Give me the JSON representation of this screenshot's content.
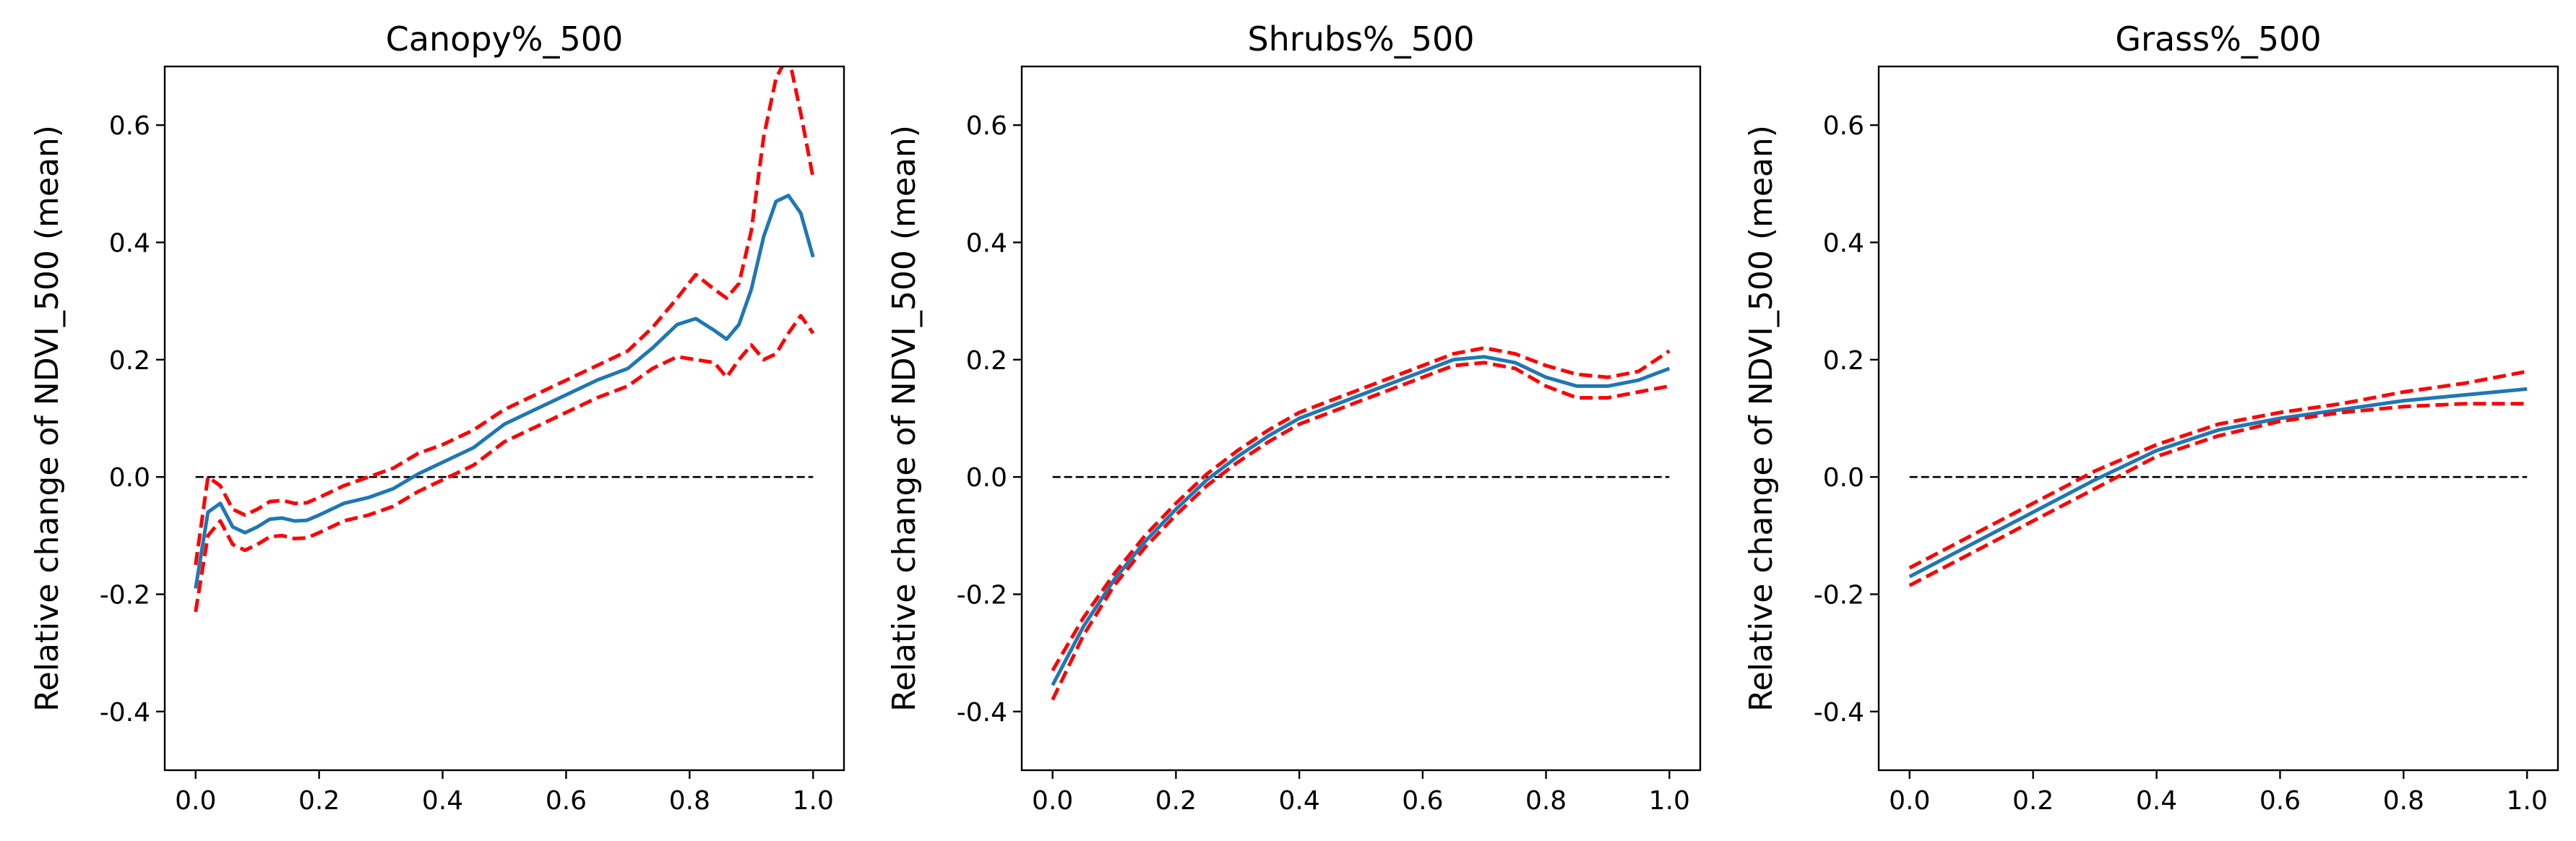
{
  "chart_data": [
    {
      "type": "line",
      "title": "Canopy%_500",
      "xlabel": "",
      "ylabel": "Relative change of NDVI_500 (mean)",
      "xlim": [
        -0.05,
        1.05
      ],
      "ylim": [
        -0.5,
        0.7
      ],
      "xticks": [
        "0.0",
        "0.2",
        "0.4",
        "0.6",
        "0.8",
        "1.0"
      ],
      "yticks": [
        "-0.4",
        "-0.2",
        "0.0",
        "0.2",
        "0.4",
        "0.6"
      ],
      "grid": false,
      "colors": {
        "mean": "#1f77b4",
        "ci": "#ff0000",
        "ref": "#000000"
      },
      "series": [
        {
          "role": "mean",
          "style": "solid",
          "x": [
            0.0,
            0.02,
            0.04,
            0.06,
            0.08,
            0.1,
            0.12,
            0.14,
            0.16,
            0.18,
            0.2,
            0.24,
            0.28,
            0.32,
            0.36,
            0.4,
            0.45,
            0.5,
            0.55,
            0.6,
            0.65,
            0.7,
            0.74,
            0.78,
            0.81,
            0.84,
            0.86,
            0.88,
            0.9,
            0.92,
            0.94,
            0.96,
            0.98,
            1.0
          ],
          "y": [
            -0.19,
            -0.06,
            -0.045,
            -0.085,
            -0.095,
            -0.085,
            -0.072,
            -0.07,
            -0.075,
            -0.074,
            -0.065,
            -0.045,
            -0.035,
            -0.02,
            0.005,
            0.025,
            0.05,
            0.09,
            0.115,
            0.14,
            0.165,
            0.185,
            0.22,
            0.26,
            0.27,
            0.25,
            0.235,
            0.26,
            0.32,
            0.41,
            0.47,
            0.48,
            0.45,
            0.375
          ]
        },
        {
          "role": "ci-upper",
          "style": "dashed",
          "x": [
            0.0,
            0.02,
            0.04,
            0.06,
            0.08,
            0.1,
            0.12,
            0.14,
            0.16,
            0.18,
            0.2,
            0.24,
            0.28,
            0.32,
            0.36,
            0.4,
            0.45,
            0.5,
            0.55,
            0.6,
            0.65,
            0.7,
            0.74,
            0.78,
            0.81,
            0.84,
            0.86,
            0.88,
            0.9,
            0.92,
            0.94,
            0.96,
            0.98,
            1.0
          ],
          "y": [
            -0.15,
            0.0,
            -0.015,
            -0.055,
            -0.065,
            -0.055,
            -0.042,
            -0.04,
            -0.045,
            -0.044,
            -0.035,
            -0.015,
            0.0,
            0.015,
            0.04,
            0.055,
            0.08,
            0.115,
            0.14,
            0.165,
            0.19,
            0.215,
            0.255,
            0.305,
            0.345,
            0.32,
            0.305,
            0.33,
            0.42,
            0.58,
            0.68,
            0.72,
            0.62,
            0.51
          ]
        },
        {
          "role": "ci-lower",
          "style": "dashed",
          "x": [
            0.0,
            0.02,
            0.04,
            0.06,
            0.08,
            0.1,
            0.12,
            0.14,
            0.16,
            0.18,
            0.2,
            0.24,
            0.28,
            0.32,
            0.36,
            0.4,
            0.45,
            0.5,
            0.55,
            0.6,
            0.65,
            0.7,
            0.74,
            0.78,
            0.81,
            0.84,
            0.86,
            0.88,
            0.9,
            0.92,
            0.94,
            0.96,
            0.98,
            1.0
          ],
          "y": [
            -0.23,
            -0.1,
            -0.075,
            -0.115,
            -0.125,
            -0.115,
            -0.102,
            -0.1,
            -0.105,
            -0.104,
            -0.095,
            -0.075,
            -0.065,
            -0.05,
            -0.025,
            -0.005,
            0.02,
            0.06,
            0.085,
            0.11,
            0.135,
            0.155,
            0.185,
            0.205,
            0.2,
            0.195,
            0.17,
            0.2,
            0.225,
            0.2,
            0.21,
            0.245,
            0.275,
            0.245
          ]
        },
        {
          "role": "reference",
          "style": "dashed-thin",
          "x": [
            0.0,
            1.0
          ],
          "y": [
            0.0,
            0.0
          ]
        }
      ]
    },
    {
      "type": "line",
      "title": "Shrubs%_500",
      "xlabel": "",
      "ylabel": "Relative change of NDVI_500 (mean)",
      "xlim": [
        -0.05,
        1.05
      ],
      "ylim": [
        -0.5,
        0.7
      ],
      "xticks": [
        "0.0",
        "0.2",
        "0.4",
        "0.6",
        "0.8",
        "1.0"
      ],
      "yticks": [
        "-0.4",
        "-0.2",
        "0.0",
        "0.2",
        "0.4",
        "0.6"
      ],
      "grid": false,
      "colors": {
        "mean": "#1f77b4",
        "ci": "#ff0000",
        "ref": "#000000"
      },
      "series": [
        {
          "role": "mean",
          "style": "solid",
          "x": [
            0.0,
            0.05,
            0.1,
            0.15,
            0.2,
            0.25,
            0.3,
            0.35,
            0.4,
            0.45,
            0.5,
            0.55,
            0.6,
            0.65,
            0.7,
            0.75,
            0.8,
            0.85,
            0.9,
            0.95,
            1.0
          ],
          "y": [
            -0.355,
            -0.255,
            -0.175,
            -0.11,
            -0.055,
            -0.005,
            0.035,
            0.07,
            0.1,
            0.12,
            0.14,
            0.16,
            0.18,
            0.2,
            0.205,
            0.195,
            0.17,
            0.155,
            0.155,
            0.165,
            0.185
          ]
        },
        {
          "role": "ci-upper",
          "style": "dashed",
          "x": [
            0.0,
            0.05,
            0.1,
            0.15,
            0.2,
            0.25,
            0.3,
            0.35,
            0.4,
            0.45,
            0.5,
            0.55,
            0.6,
            0.65,
            0.7,
            0.75,
            0.8,
            0.85,
            0.9,
            0.95,
            1.0
          ],
          "y": [
            -0.33,
            -0.24,
            -0.165,
            -0.1,
            -0.045,
            0.005,
            0.045,
            0.08,
            0.11,
            0.13,
            0.15,
            0.17,
            0.19,
            0.21,
            0.22,
            0.21,
            0.19,
            0.175,
            0.17,
            0.18,
            0.215
          ]
        },
        {
          "role": "ci-lower",
          "style": "dashed",
          "x": [
            0.0,
            0.05,
            0.1,
            0.15,
            0.2,
            0.25,
            0.3,
            0.35,
            0.4,
            0.45,
            0.5,
            0.55,
            0.6,
            0.65,
            0.7,
            0.75,
            0.8,
            0.85,
            0.9,
            0.95,
            1.0
          ],
          "y": [
            -0.38,
            -0.27,
            -0.185,
            -0.12,
            -0.065,
            -0.015,
            0.025,
            0.06,
            0.09,
            0.11,
            0.13,
            0.15,
            0.17,
            0.19,
            0.195,
            0.185,
            0.155,
            0.135,
            0.135,
            0.145,
            0.155
          ]
        },
        {
          "role": "reference",
          "style": "dashed-thin",
          "x": [
            0.0,
            1.0
          ],
          "y": [
            0.0,
            0.0
          ]
        }
      ]
    },
    {
      "type": "line",
      "title": "Grass%_500",
      "xlabel": "",
      "ylabel": "Relative change of NDVI_500 (mean)",
      "xlim": [
        -0.05,
        1.05
      ],
      "ylim": [
        -0.5,
        0.7
      ],
      "xticks": [
        "0.0",
        "0.2",
        "0.4",
        "0.6",
        "0.8",
        "1.0"
      ],
      "yticks": [
        "-0.4",
        "-0.2",
        "0.0",
        "0.2",
        "0.4",
        "0.6"
      ],
      "grid": false,
      "colors": {
        "mean": "#1f77b4",
        "ci": "#ff0000",
        "ref": "#000000"
      },
      "series": [
        {
          "role": "mean",
          "style": "solid",
          "x": [
            0.0,
            0.1,
            0.2,
            0.3,
            0.4,
            0.5,
            0.6,
            0.7,
            0.8,
            0.9,
            1.0
          ],
          "y": [
            -0.17,
            -0.115,
            -0.06,
            -0.005,
            0.045,
            0.08,
            0.1,
            0.115,
            0.13,
            0.14,
            0.15
          ]
        },
        {
          "role": "ci-upper",
          "style": "dashed",
          "x": [
            0.0,
            0.1,
            0.2,
            0.3,
            0.4,
            0.5,
            0.6,
            0.7,
            0.8,
            0.9,
            1.0
          ],
          "y": [
            -0.155,
            -0.1,
            -0.045,
            0.01,
            0.055,
            0.09,
            0.11,
            0.125,
            0.145,
            0.16,
            0.18
          ]
        },
        {
          "role": "ci-lower",
          "style": "dashed",
          "x": [
            0.0,
            0.1,
            0.2,
            0.3,
            0.4,
            0.5,
            0.6,
            0.7,
            0.8,
            0.9,
            1.0
          ],
          "y": [
            -0.185,
            -0.13,
            -0.075,
            -0.02,
            0.035,
            0.07,
            0.095,
            0.11,
            0.12,
            0.125,
            0.125
          ]
        },
        {
          "role": "reference",
          "style": "dashed-thin",
          "x": [
            0.0,
            1.0
          ],
          "y": [
            0.0,
            0.0
          ]
        }
      ]
    }
  ]
}
